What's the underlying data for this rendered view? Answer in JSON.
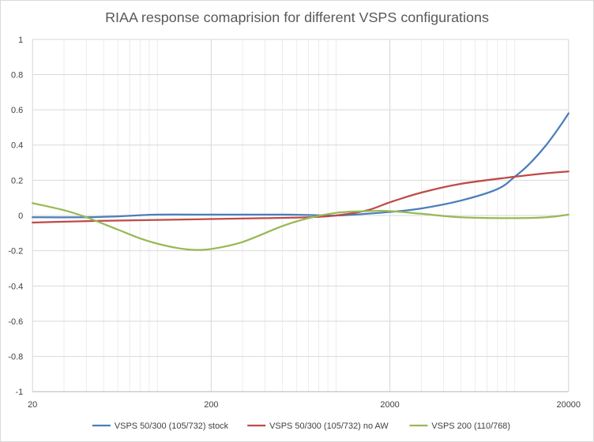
{
  "chart_data": {
    "type": "line",
    "title": "RIAA response comaprision for different VSPS configurations",
    "xlabel": "",
    "ylabel": "",
    "x_scale": "log",
    "xlim": [
      20,
      20000
    ],
    "ylim": [
      -1,
      1
    ],
    "x_ticks": [
      "20",
      "200",
      "2000",
      "20000"
    ],
    "y_ticks": [
      "1",
      "0.8",
      "0.6",
      "0.4",
      "0.2",
      "0",
      "-0.2",
      "-0.4",
      "-0.6",
      "-0.8",
      "-1"
    ],
    "grid": true,
    "legend_position": "bottom",
    "series": [
      {
        "name": "VSPS 50/300 (105/732) stock",
        "color": "#4a7ebb",
        "x": [
          20,
          40,
          60,
          100,
          200,
          500,
          700,
          1000,
          1500,
          2000,
          3000,
          5000,
          8000,
          10000,
          12000,
          15000,
          18000,
          20000
        ],
        "y": [
          -0.01,
          -0.01,
          -0.005,
          0.005,
          0.005,
          0.005,
          0.003,
          0.0,
          0.01,
          0.02,
          0.04,
          0.085,
          0.15,
          0.22,
          0.29,
          0.4,
          0.51,
          0.58
        ]
      },
      {
        "name": "VSPS 50/300 (105/732) no AW",
        "color": "#be4b48",
        "x": [
          20,
          30,
          50,
          100,
          200,
          400,
          700,
          1000,
          1500,
          2000,
          3000,
          5000,
          10000,
          15000,
          20000
        ],
        "y": [
          -0.04,
          -0.035,
          -0.03,
          -0.025,
          -0.02,
          -0.015,
          -0.01,
          0.0,
          0.03,
          0.075,
          0.13,
          0.18,
          0.22,
          0.24,
          0.25
        ]
      },
      {
        "name": "VSPS 200 (110/768)",
        "color": "#98b954",
        "x": [
          20,
          30,
          40,
          60,
          80,
          100,
          130,
          160,
          200,
          300,
          500,
          700,
          1000,
          1500,
          2000,
          3000,
          5000,
          10000,
          15000,
          20000
        ],
        "y": [
          0.07,
          0.03,
          -0.01,
          -0.08,
          -0.13,
          -0.16,
          -0.185,
          -0.195,
          -0.19,
          -0.15,
          -0.06,
          -0.015,
          0.015,
          0.025,
          0.025,
          0.01,
          -0.01,
          -0.015,
          -0.01,
          0.005
        ]
      }
    ]
  }
}
